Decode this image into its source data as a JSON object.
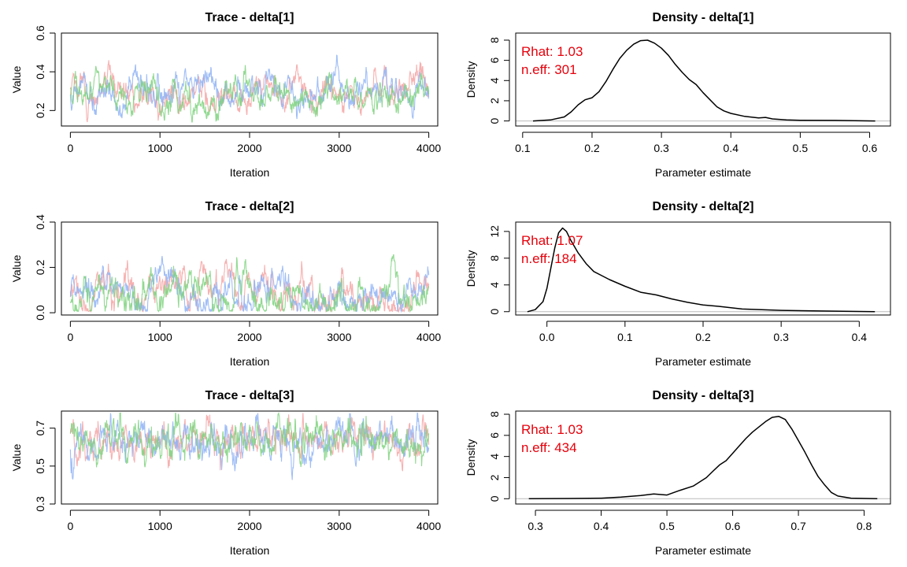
{
  "chart_data": [
    {
      "type": "line",
      "title": "Trace - delta[1]",
      "xlabel": "Iteration",
      "ylabel": "Value",
      "xlim": [
        -100,
        4100
      ],
      "ylim": [
        0.12,
        0.6
      ],
      "xticks": [
        "0",
        "1000",
        "2000",
        "3000",
        "4000"
      ],
      "xtick_values": [
        0,
        1000,
        2000,
        3000,
        4000
      ],
      "yticks": [
        "0.2",
        "0.4",
        "0.6"
      ],
      "ytick_values": [
        0.2,
        0.4,
        0.6
      ],
      "series_colors": [
        "#f4a3a3",
        "#8fb3f5",
        "#7fd27f"
      ],
      "trace": {
        "mean": 0.29,
        "sd": 0.055,
        "rho": 0.9,
        "min": 0.14,
        "max": 0.58
      }
    },
    {
      "type": "line",
      "title": "Density - delta[1]",
      "xlabel": "Parameter estimate",
      "ylabel": "Density",
      "xlim": [
        0.09,
        0.63
      ],
      "ylim": [
        -0.5,
        8.7
      ],
      "xticks": [
        "0.1",
        "0.2",
        "0.3",
        "0.4",
        "0.5",
        "0.6"
      ],
      "xtick_values": [
        0.1,
        0.2,
        0.3,
        0.4,
        0.5,
        0.6
      ],
      "yticks": [
        "0",
        "2",
        "4",
        "6",
        "8"
      ],
      "ytick_values": [
        0,
        2,
        4,
        6,
        8
      ],
      "x": [
        0.115,
        0.14,
        0.16,
        0.17,
        0.18,
        0.19,
        0.2,
        0.21,
        0.22,
        0.23,
        0.24,
        0.25,
        0.26,
        0.27,
        0.28,
        0.29,
        0.3,
        0.31,
        0.32,
        0.33,
        0.34,
        0.35,
        0.36,
        0.37,
        0.38,
        0.39,
        0.4,
        0.42,
        0.44,
        0.45,
        0.46,
        0.48,
        0.5,
        0.55,
        0.608
      ],
      "y": [
        0.0,
        0.1,
        0.4,
        0.9,
        1.6,
        2.1,
        2.3,
        2.9,
        3.9,
        5.1,
        6.2,
        7.0,
        7.6,
        7.95,
        8.0,
        7.7,
        7.2,
        6.5,
        5.6,
        4.8,
        4.1,
        3.6,
        2.8,
        2.1,
        1.4,
        1.0,
        0.75,
        0.45,
        0.3,
        0.35,
        0.2,
        0.1,
        0.07,
        0.05,
        0.0
      ],
      "annotations": [
        "Rhat: 1.03",
        "n.eff: 301"
      ],
      "annotation_color": "#e8000b"
    },
    {
      "type": "line",
      "title": "Trace - delta[2]",
      "xlabel": "Iteration",
      "ylabel": "Value",
      "xlim": [
        -100,
        4100
      ],
      "ylim": [
        -0.01,
        0.4
      ],
      "xticks": [
        "0",
        "1000",
        "2000",
        "3000",
        "4000"
      ],
      "xtick_values": [
        0,
        1000,
        2000,
        3000,
        4000
      ],
      "yticks": [
        "0.0",
        "0.2",
        "0.4"
      ],
      "ytick_values": [
        0.0,
        0.2,
        0.4
      ],
      "series_colors": [
        "#f4a3a3",
        "#8fb3f5",
        "#7fd27f"
      ],
      "trace": {
        "mean": 0.07,
        "sd": 0.07,
        "rho": 0.95,
        "min": 0.005,
        "max": 0.39
      }
    },
    {
      "type": "line",
      "title": "Density - delta[2]",
      "xlabel": "Parameter estimate",
      "ylabel": "Density",
      "xlim": [
        -0.04,
        0.44
      ],
      "ylim": [
        -0.5,
        13.4
      ],
      "xticks": [
        "0.0",
        "0.1",
        "0.2",
        "0.3",
        "0.4"
      ],
      "xtick_values": [
        0.0,
        0.1,
        0.2,
        0.3,
        0.4
      ],
      "yticks": [
        "0",
        "4",
        "8",
        "12"
      ],
      "ytick_values": [
        0,
        4,
        8,
        12
      ],
      "x": [
        -0.025,
        -0.015,
        -0.005,
        0.0,
        0.005,
        0.01,
        0.015,
        0.02,
        0.025,
        0.03,
        0.04,
        0.05,
        0.06,
        0.08,
        0.1,
        0.12,
        0.14,
        0.16,
        0.18,
        0.2,
        0.22,
        0.25,
        0.3,
        0.35,
        0.42
      ],
      "y": [
        0.0,
        0.3,
        1.5,
        3.5,
        6.5,
        9.5,
        11.8,
        12.5,
        12.0,
        10.8,
        8.8,
        7.2,
        6.0,
        4.8,
        3.8,
        2.9,
        2.5,
        1.9,
        1.4,
        1.0,
        0.8,
        0.4,
        0.2,
        0.1,
        0.0
      ],
      "annotations": [
        "Rhat: 1.07",
        "n.eff: 184"
      ],
      "annotation_color": "#e8000b"
    },
    {
      "type": "line",
      "title": "Trace - delta[3]",
      "xlabel": "Iteration",
      "ylabel": "Value",
      "xlim": [
        -100,
        4100
      ],
      "ylim": [
        0.3,
        0.79
      ],
      "xticks": [
        "0",
        "1000",
        "2000",
        "3000",
        "4000"
      ],
      "xtick_values": [
        0,
        1000,
        2000,
        3000,
        4000
      ],
      "yticks": [
        "0.3",
        "0.5",
        "0.7"
      ],
      "ytick_values": [
        0.3,
        0.5,
        0.7
      ],
      "series_colors": [
        "#f4a3a3",
        "#8fb3f5",
        "#7fd27f"
      ],
      "trace": {
        "mean": 0.64,
        "sd": 0.055,
        "rho": 0.85,
        "min": 0.32,
        "max": 0.78
      }
    },
    {
      "type": "line",
      "title": "Density - delta[3]",
      "xlabel": "Parameter estimate",
      "ylabel": "Density",
      "xlim": [
        0.27,
        0.84
      ],
      "ylim": [
        -0.5,
        8.3
      ],
      "xticks": [
        "0.3",
        "0.4",
        "0.5",
        "0.6",
        "0.7",
        "0.8"
      ],
      "xtick_values": [
        0.3,
        0.4,
        0.5,
        0.6,
        0.7,
        0.8
      ],
      "yticks": [
        "0",
        "2",
        "4",
        "6",
        "8"
      ],
      "ytick_values": [
        0,
        2,
        4,
        6,
        8
      ],
      "x": [
        0.29,
        0.35,
        0.4,
        0.43,
        0.46,
        0.48,
        0.5,
        0.52,
        0.54,
        0.56,
        0.57,
        0.58,
        0.59,
        0.6,
        0.61,
        0.62,
        0.63,
        0.64,
        0.65,
        0.66,
        0.67,
        0.68,
        0.69,
        0.7,
        0.71,
        0.72,
        0.73,
        0.74,
        0.75,
        0.76,
        0.78,
        0.82
      ],
      "y": [
        0.0,
        0.02,
        0.05,
        0.15,
        0.3,
        0.45,
        0.35,
        0.8,
        1.2,
        2.0,
        2.6,
        3.2,
        3.6,
        4.3,
        5.0,
        5.7,
        6.3,
        6.8,
        7.3,
        7.7,
        7.8,
        7.5,
        6.6,
        5.5,
        4.4,
        3.2,
        2.1,
        1.3,
        0.6,
        0.25,
        0.05,
        0.0
      ],
      "annotations": [
        "Rhat: 1.03",
        "n.eff: 434"
      ],
      "annotation_color": "#e8000b"
    }
  ]
}
